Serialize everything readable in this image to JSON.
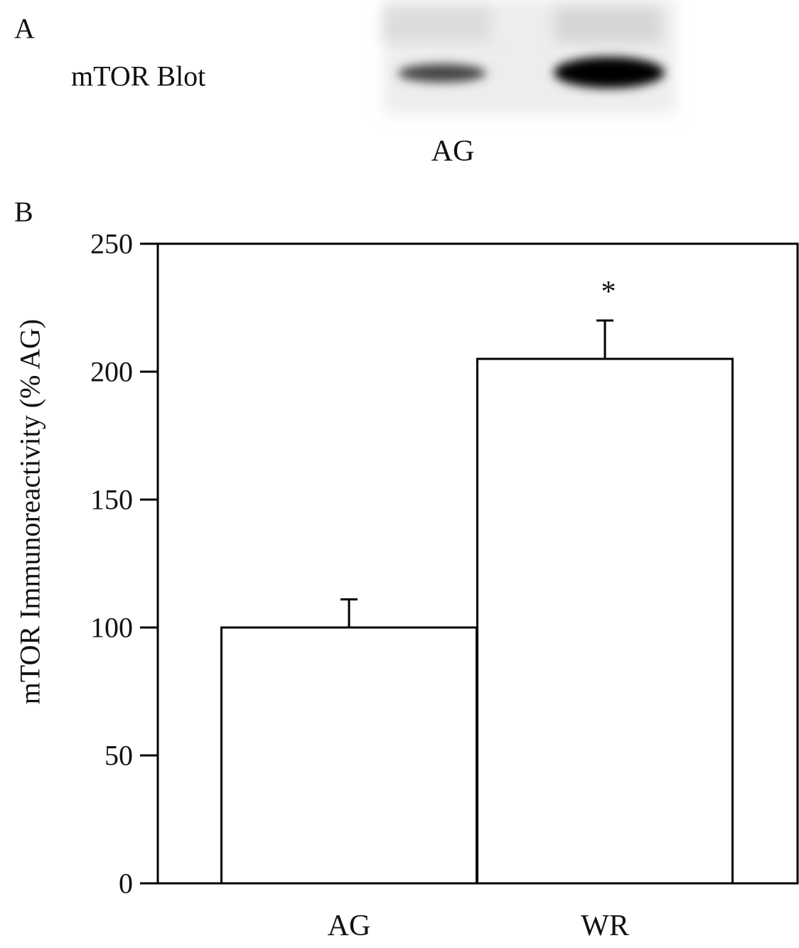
{
  "panel_a": {
    "label": "A",
    "blot_label": "mTOR Blot",
    "lane_label": "AG"
  },
  "chart_data": {
    "type": "bar",
    "panel_label": "B",
    "y_label": "mTOR Immunoreactivity (% AG)",
    "categories": [
      "AG",
      "WR"
    ],
    "values": [
      100,
      205
    ],
    "errors": [
      11,
      15
    ],
    "color": "#ffffff",
    "edge_color": "#000000",
    "annotations": [
      "*"
    ],
    "ylim": [
      0,
      250
    ],
    "yticks": [
      0,
      50,
      100,
      150,
      200,
      250
    ]
  }
}
